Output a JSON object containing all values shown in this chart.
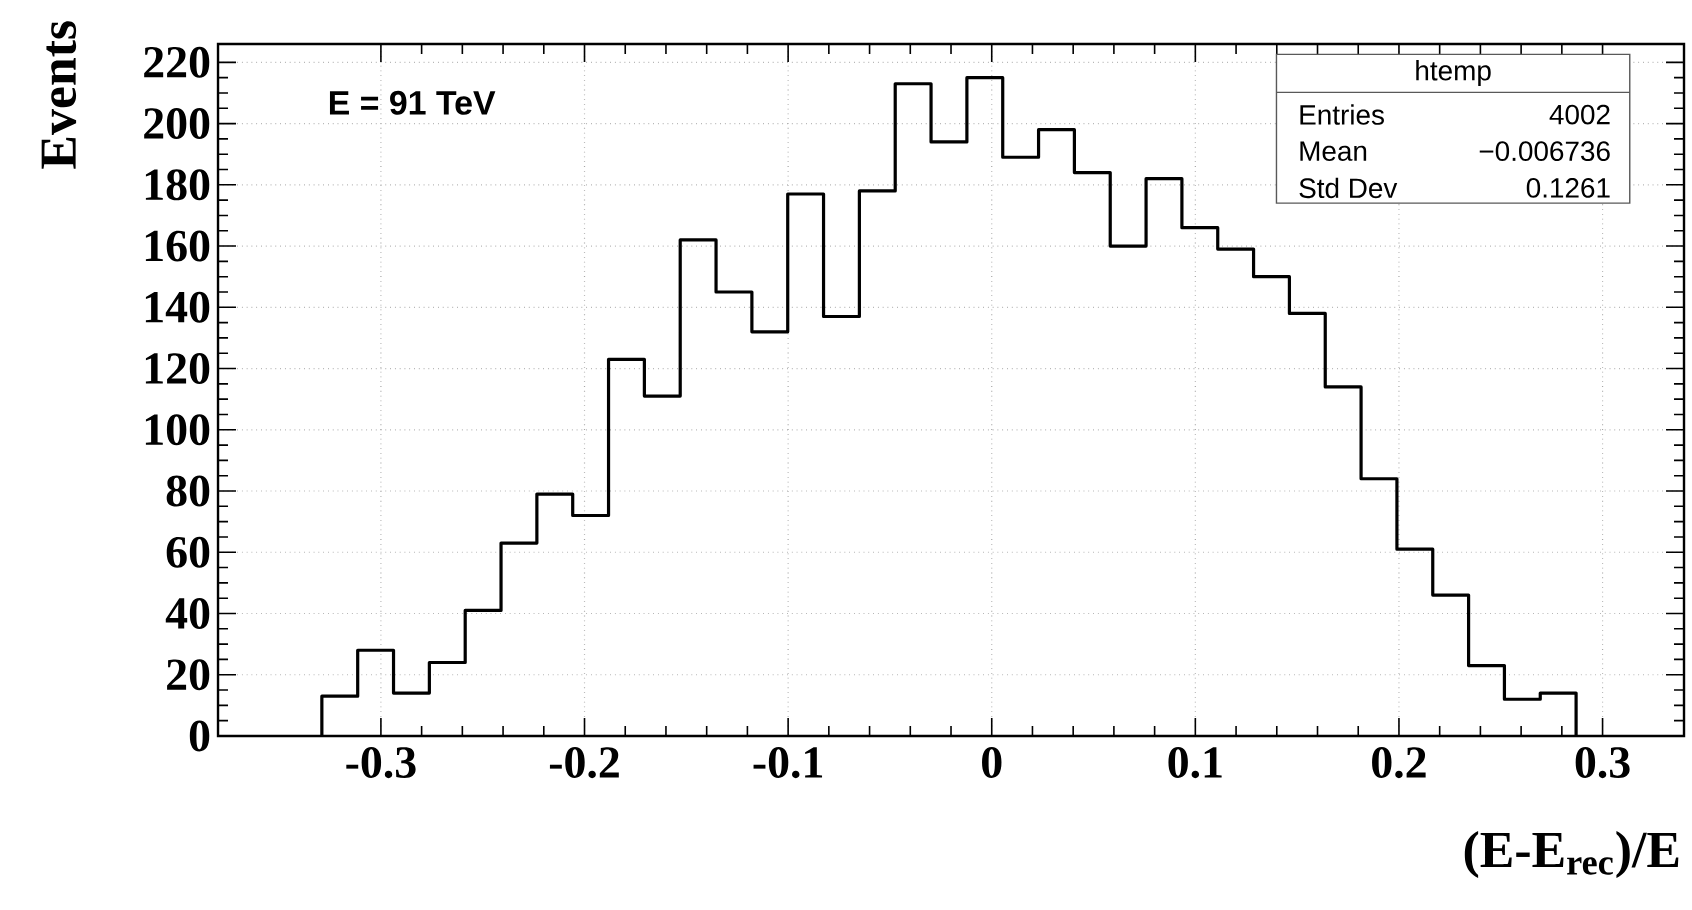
{
  "chart_data": {
    "type": "histogram",
    "xlabel": "(E-E$_{rec}$)/E",
    "ylabel": "Events",
    "annotations": [
      "E = 91 TeV",
      "htemp",
      "Entries",
      "4002",
      "Mean",
      "−0.006736",
      "Std Dev",
      "0.1261"
    ],
    "bins": [
      -0.329,
      -0.3114,
      -0.2938,
      -0.2762,
      -0.2586,
      -0.241,
      -0.2234,
      -0.2058,
      -0.1882,
      -0.1706,
      -0.153,
      -0.1354,
      -0.1178,
      -0.1002,
      -0.0826,
      -0.065,
      -0.0474,
      -0.0298,
      -0.0122,
      0.0054,
      0.023,
      0.0406,
      0.0582,
      0.0758,
      0.0934,
      0.111,
      0.1286,
      0.1462,
      0.1638,
      0.1814,
      0.199,
      0.2166,
      0.2342,
      0.2518,
      0.2694,
      0.287
    ],
    "values": [
      13,
      28,
      14,
      24,
      41,
      63,
      79,
      72,
      123,
      111,
      162,
      145,
      132,
      177,
      137,
      178,
      213,
      194,
      215,
      189,
      198,
      184,
      160,
      182,
      166,
      159,
      150,
      138,
      114,
      84,
      61,
      46,
      23,
      12,
      14
    ],
    "color": "#000000",
    "xlim": [
      -0.38,
      0.34
    ],
    "ylim": [
      0,
      226
    ],
    "xticks": [
      -0.3,
      -0.2,
      -0.1,
      0,
      0.1,
      0.2,
      0.3
    ],
    "yticks": [
      0,
      20,
      40,
      60,
      80,
      100,
      120,
      140,
      160,
      180,
      200,
      220
    ],
    "grid": true
  }
}
